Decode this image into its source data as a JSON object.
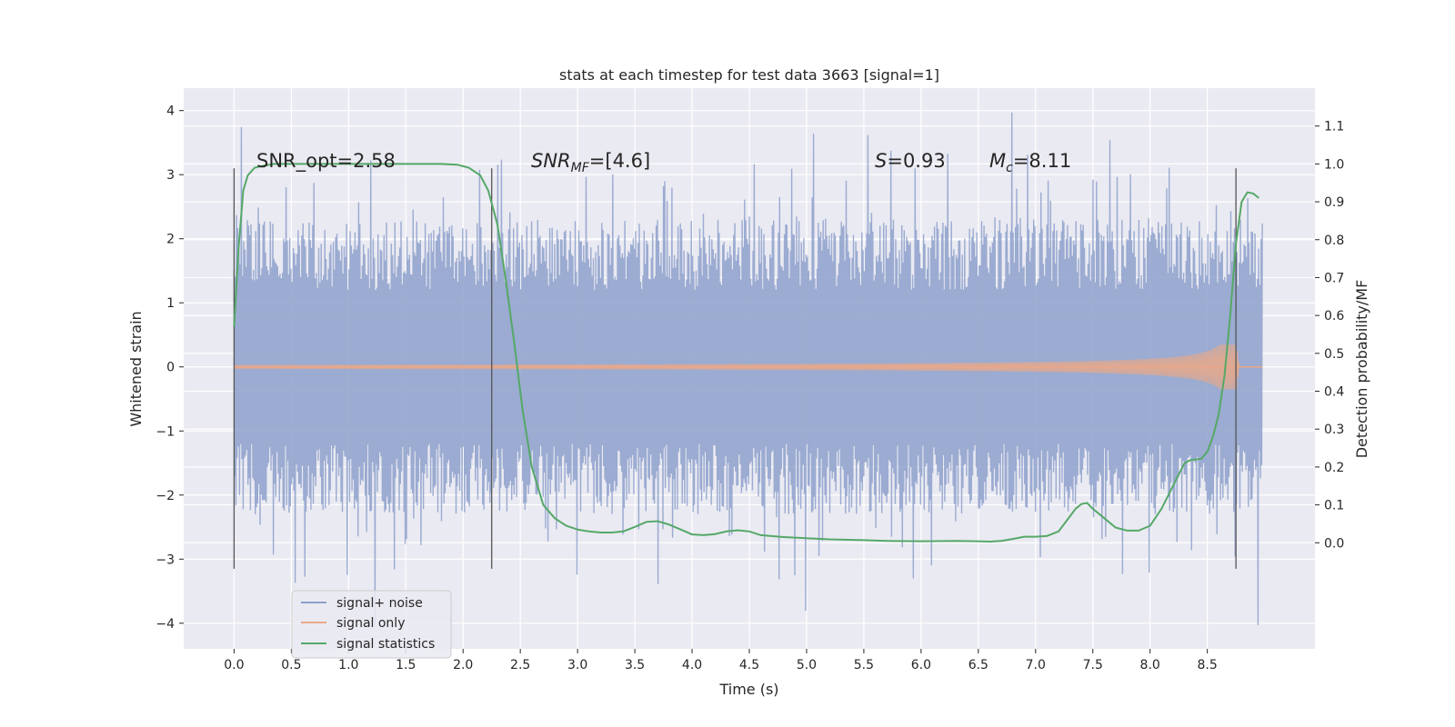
{
  "chart_data": {
    "type": "line",
    "title": "stats at each timestep for test data 3663 [signal=1]",
    "xlabel": "Time (s)",
    "ylabel": "Whitened strain",
    "y2label": "Detection probability/MF",
    "xlim": [
      -0.44,
      9.44
    ],
    "ylim": [
      -4.4,
      4.35
    ],
    "y2lim": [
      -0.28,
      1.2
    ],
    "x_ticks": [
      "0.0",
      "0.5",
      "1.0",
      "1.5",
      "2.0",
      "2.5",
      "3.0",
      "3.5",
      "4.0",
      "4.5",
      "5.0",
      "5.5",
      "6.0",
      "6.5",
      "7.0",
      "7.5",
      "8.0",
      "8.5"
    ],
    "y_ticks": [
      "4",
      "3",
      "2",
      "1",
      "0",
      "−1",
      "−2",
      "−3",
      "−4"
    ],
    "y2_ticks": [
      "1.1",
      "1.0",
      "0.9",
      "0.8",
      "0.7",
      "0.6",
      "0.5",
      "0.4",
      "0.3",
      "0.2",
      "0.1",
      "0.0"
    ],
    "grid": true,
    "legend_position": "lower-left",
    "annotations": {
      "snr_opt": "SNR_opt=2.58",
      "snr_mf_main": "SNR",
      "snr_mf_sub": "MF",
      "snr_mf_value": "=[4.6]",
      "s_symbol": "S",
      "s_value": "=0.93",
      "mc_symbol": "M",
      "mc_sub": "c",
      "mc_value": "=8.11"
    },
    "vlines": [
      0.0,
      2.25,
      8.75
    ],
    "vline_range": [
      -3.15,
      3.1
    ],
    "series": [
      {
        "name": "signal+ noise",
        "color": "#8da0cb",
        "kind": "noise",
        "time_range": [
          0.0,
          8.98
        ],
        "envelope_typical": 1.2,
        "peak_max": 3.97,
        "peak_min": -4.03
      },
      {
        "name": "signal only",
        "color": "#e8a88a",
        "kind": "chirp",
        "time_range": [
          0.0,
          8.98
        ],
        "peak_amplitude": 0.35,
        "peak_time": 8.7
      },
      {
        "name": "signal statistics",
        "color": "#55a868",
        "axis": "secondary",
        "x": [
          0.0,
          0.04,
          0.08,
          0.12,
          0.18,
          0.25,
          0.35,
          0.5,
          1.0,
          1.5,
          1.8,
          1.95,
          2.05,
          2.15,
          2.22,
          2.3,
          2.37,
          2.45,
          2.52,
          2.6,
          2.7,
          2.8,
          2.9,
          3.0,
          3.1,
          3.2,
          3.3,
          3.4,
          3.5,
          3.6,
          3.7,
          3.8,
          3.9,
          4.0,
          4.1,
          4.2,
          4.3,
          4.4,
          4.5,
          4.6,
          4.8,
          5.0,
          5.2,
          5.5,
          5.7,
          6.0,
          6.3,
          6.5,
          6.6,
          6.7,
          6.8,
          6.9,
          7.0,
          7.1,
          7.2,
          7.3,
          7.35,
          7.4,
          7.45,
          7.5,
          7.6,
          7.7,
          7.8,
          7.9,
          8.0,
          8.1,
          8.2,
          8.3,
          8.35,
          8.4,
          8.45,
          8.5,
          8.55,
          8.6,
          8.65,
          8.7,
          8.75,
          8.8,
          8.85,
          8.9,
          8.95
        ],
        "y": [
          0.57,
          0.78,
          0.93,
          0.97,
          0.99,
          0.995,
          1.0,
          1.0,
          1.0,
          1.0,
          1.0,
          0.998,
          0.99,
          0.97,
          0.93,
          0.84,
          0.7,
          0.52,
          0.35,
          0.2,
          0.1,
          0.065,
          0.045,
          0.035,
          0.03,
          0.027,
          0.027,
          0.03,
          0.042,
          0.055,
          0.057,
          0.048,
          0.035,
          0.022,
          0.02,
          0.023,
          0.03,
          0.033,
          0.03,
          0.02,
          0.015,
          0.012,
          0.009,
          0.007,
          0.005,
          0.004,
          0.005,
          0.004,
          0.003,
          0.005,
          0.01,
          0.016,
          0.016,
          0.018,
          0.03,
          0.07,
          0.09,
          0.102,
          0.105,
          0.09,
          0.065,
          0.04,
          0.032,
          0.032,
          0.045,
          0.09,
          0.15,
          0.21,
          0.218,
          0.22,
          0.222,
          0.24,
          0.28,
          0.34,
          0.44,
          0.6,
          0.79,
          0.9,
          0.925,
          0.922,
          0.91
        ]
      }
    ]
  }
}
